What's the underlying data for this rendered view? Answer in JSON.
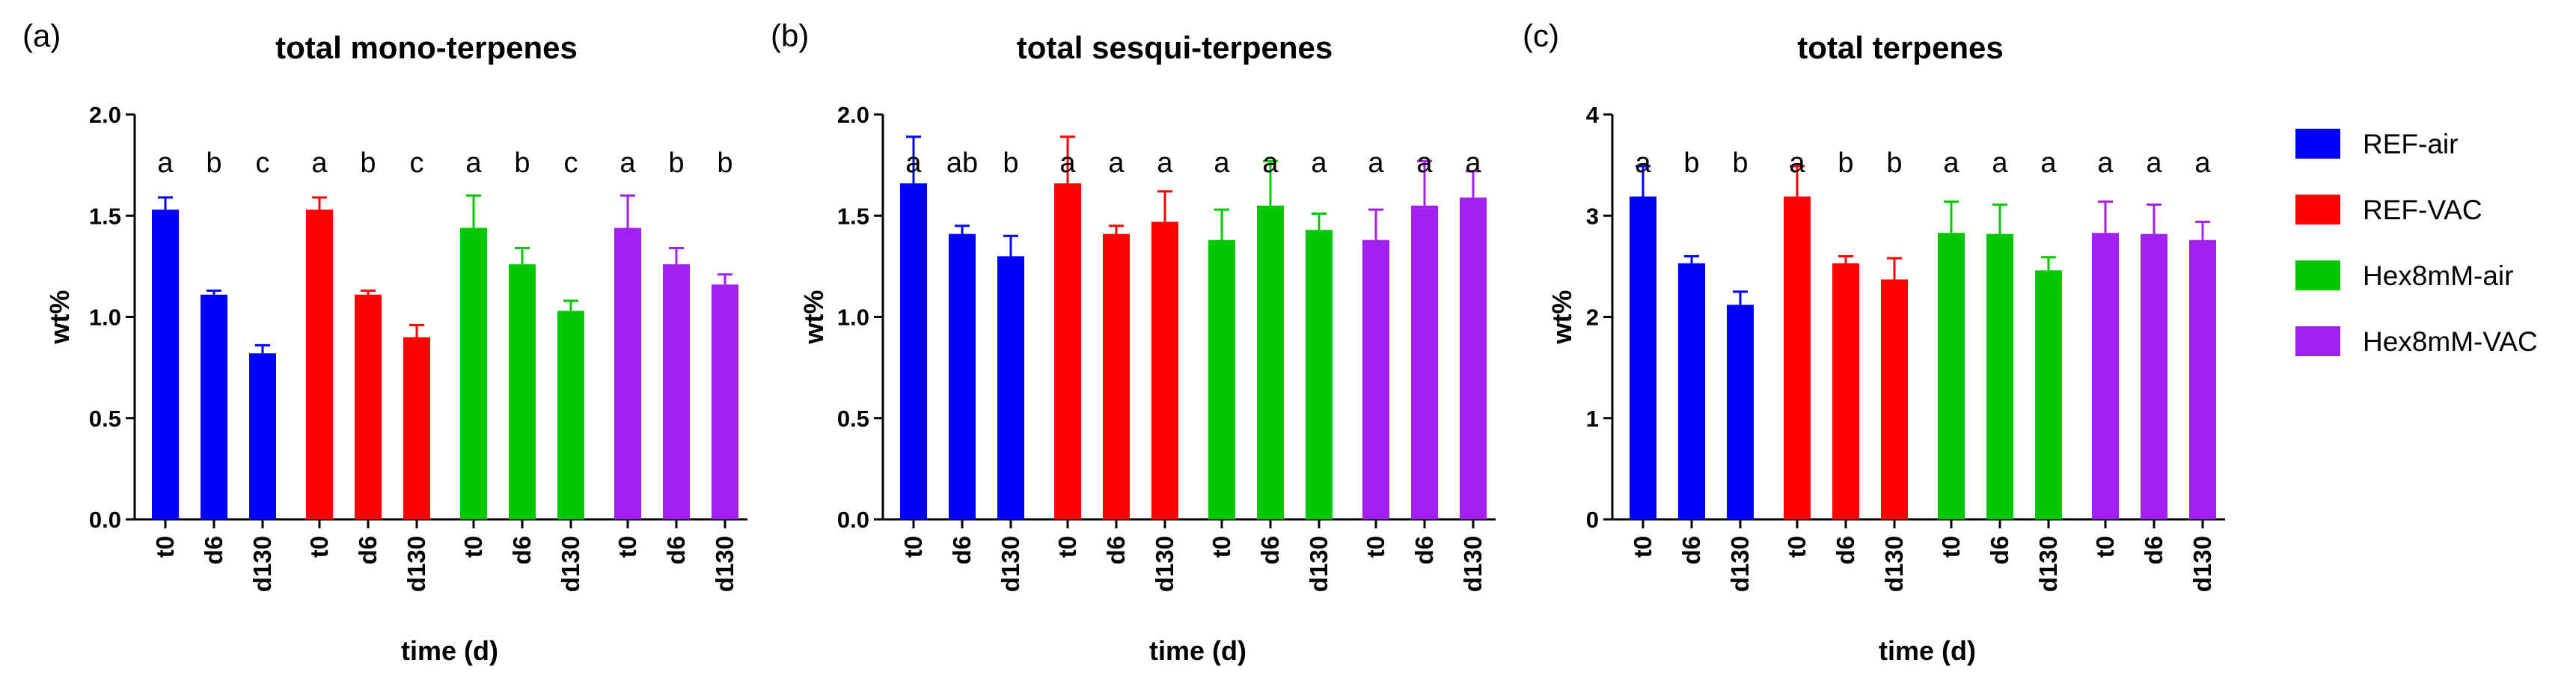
{
  "chart_data": [
    {
      "type": "bar",
      "panel": "(a)",
      "title": "total mono-terpenes",
      "xlabel": "time (d)",
      "ylabel": "wt%",
      "ylim": [
        0,
        2.0
      ],
      "yticks": [
        "0.0",
        "0.5",
        "1.0",
        "1.5",
        "2.0"
      ],
      "ytick_values": [
        0,
        0.5,
        1.0,
        1.5,
        2.0
      ],
      "categories": [
        "t0",
        "d6",
        "d130"
      ],
      "series": [
        {
          "name": "REF-air",
          "values": [
            1.53,
            1.11,
            0.82
          ],
          "errors": [
            0.06,
            0.02,
            0.04
          ],
          "letters": [
            "a",
            "b",
            "c"
          ]
        },
        {
          "name": "REF-VAC",
          "values": [
            1.53,
            1.11,
            0.9
          ],
          "errors": [
            0.06,
            0.02,
            0.06
          ],
          "letters": [
            "a",
            "b",
            "c"
          ]
        },
        {
          "name": "Hex8mM-air",
          "values": [
            1.44,
            1.26,
            1.03
          ],
          "errors": [
            0.16,
            0.08,
            0.05
          ],
          "letters": [
            "a",
            "b",
            "c"
          ]
        },
        {
          "name": "Hex8mM-VAC",
          "values": [
            1.44,
            1.26,
            1.16
          ],
          "errors": [
            0.16,
            0.08,
            0.05
          ],
          "letters": [
            "a",
            "b",
            "b"
          ]
        }
      ]
    },
    {
      "type": "bar",
      "panel": "(b)",
      "title": "total sesqui-terpenes",
      "xlabel": "time (d)",
      "ylabel": "wt%",
      "ylim": [
        0,
        2.0
      ],
      "yticks": [
        "0.0",
        "0.5",
        "1.0",
        "1.5",
        "2.0"
      ],
      "ytick_values": [
        0,
        0.5,
        1.0,
        1.5,
        2.0
      ],
      "categories": [
        "t0",
        "d6",
        "d130"
      ],
      "series": [
        {
          "name": "REF-air",
          "values": [
            1.66,
            1.41,
            1.3
          ],
          "errors": [
            0.23,
            0.04,
            0.1
          ],
          "letters": [
            "a",
            "ab",
            "b"
          ]
        },
        {
          "name": "REF-VAC",
          "values": [
            1.66,
            1.41,
            1.47
          ],
          "errors": [
            0.23,
            0.04,
            0.15
          ],
          "letters": [
            "a",
            "a",
            "a"
          ]
        },
        {
          "name": "Hex8mM-air",
          "values": [
            1.38,
            1.55,
            1.43
          ],
          "errors": [
            0.15,
            0.22,
            0.08
          ],
          "letters": [
            "a",
            "a",
            "a"
          ]
        },
        {
          "name": "Hex8mM-VAC",
          "values": [
            1.38,
            1.55,
            1.59
          ],
          "errors": [
            0.15,
            0.22,
            0.13
          ],
          "letters": [
            "a",
            "a",
            "a"
          ]
        }
      ]
    },
    {
      "type": "bar",
      "panel": "(c)",
      "title": "total terpenes",
      "xlabel": "time (d)",
      "ylabel": "wt%",
      "ylim": [
        0,
        4
      ],
      "yticks": [
        "0",
        "1",
        "2",
        "3",
        "4"
      ],
      "ytick_values": [
        0,
        1,
        2,
        3,
        4
      ],
      "categories": [
        "t0",
        "d6",
        "d130"
      ],
      "series": [
        {
          "name": "REF-air",
          "values": [
            3.19,
            2.53,
            2.12
          ],
          "errors": [
            0.3,
            0.07,
            0.13
          ],
          "letters": [
            "a",
            "b",
            "b"
          ]
        },
        {
          "name": "REF-VAC",
          "values": [
            3.19,
            2.53,
            2.37
          ],
          "errors": [
            0.3,
            0.07,
            0.21
          ],
          "letters": [
            "a",
            "b",
            "b"
          ]
        },
        {
          "name": "Hex8mM-air",
          "values": [
            2.83,
            2.82,
            2.46
          ],
          "errors": [
            0.31,
            0.29,
            0.13
          ],
          "letters": [
            "a",
            "a",
            "a"
          ]
        },
        {
          "name": "Hex8mM-VAC",
          "values": [
            2.83,
            2.82,
            2.76
          ],
          "errors": [
            0.31,
            0.29,
            0.18
          ],
          "letters": [
            "a",
            "a",
            "a"
          ]
        }
      ]
    }
  ],
  "legend": {
    "placement": "right",
    "items": [
      {
        "label": "REF-air",
        "color": "#0000ff"
      },
      {
        "label": "REF-VAC",
        "color": "#ff0000"
      },
      {
        "label": "Hex8mM-air",
        "color": "#00c800"
      },
      {
        "label": "Hex8mM-VAC",
        "color": "#a020f0"
      }
    ]
  }
}
